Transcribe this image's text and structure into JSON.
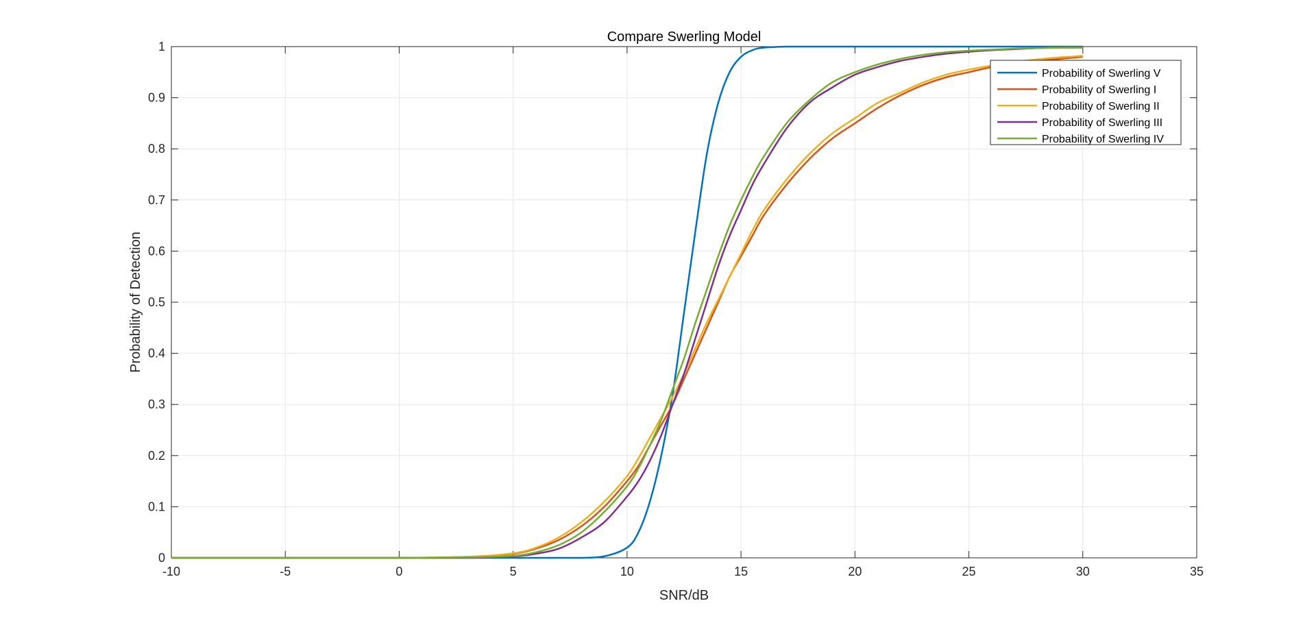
{
  "chart_data": {
    "type": "line",
    "title": "Compare Swerling Model",
    "xlabel": "SNR/dB",
    "ylabel": "Probability of Detection",
    "xlim": [
      -10,
      35
    ],
    "ylim": [
      0,
      1
    ],
    "x_ticks": [
      "-10",
      "-5",
      "0",
      "5",
      "10",
      "15",
      "20",
      "25",
      "30",
      "35"
    ],
    "y_ticks": [
      "0",
      "0.1",
      "0.2",
      "0.3",
      "0.4",
      "0.5",
      "0.6",
      "0.7",
      "0.8",
      "0.9",
      "1"
    ],
    "grid": true,
    "legend_position": "top-right",
    "x": [
      -10,
      -5,
      0,
      3,
      5,
      6,
      7,
      8,
      9,
      10,
      10.5,
      11,
      11.5,
      12,
      12.5,
      13,
      13.5,
      14,
      14.5,
      15,
      15.5,
      16,
      17,
      18,
      19,
      20,
      21,
      22,
      23,
      24,
      25,
      26,
      27,
      28,
      29,
      30
    ],
    "series": [
      {
        "name": "Probability of Swerling V",
        "color": "#0072BD",
        "values": [
          0,
          0,
          0,
          0,
          0,
          0,
          0,
          0,
          0.003,
          0.02,
          0.05,
          0.11,
          0.2,
          0.32,
          0.48,
          0.64,
          0.79,
          0.89,
          0.95,
          0.98,
          0.993,
          0.998,
          1,
          1,
          1,
          1,
          1,
          1,
          1,
          1,
          1,
          1,
          1,
          1,
          1,
          1
        ]
      },
      {
        "name": "Probability of Swerling I",
        "color": "#D95319",
        "values": [
          0,
          0,
          0,
          0.002,
          0.008,
          0.018,
          0.035,
          0.062,
          0.1,
          0.15,
          0.18,
          0.22,
          0.26,
          0.3,
          0.35,
          0.4,
          0.45,
          0.5,
          0.55,
          0.59,
          0.63,
          0.67,
          0.73,
          0.78,
          0.82,
          0.85,
          0.88,
          0.905,
          0.925,
          0.94,
          0.95,
          0.96,
          0.967,
          0.972,
          0.976,
          0.98
        ]
      },
      {
        "name": "Probability of Swerling II",
        "color": "#EDB120",
        "values": [
          0,
          0,
          0,
          0.002,
          0.009,
          0.02,
          0.04,
          0.07,
          0.11,
          0.16,
          0.195,
          0.235,
          0.275,
          0.315,
          0.36,
          0.41,
          0.46,
          0.505,
          0.55,
          0.595,
          0.64,
          0.68,
          0.74,
          0.79,
          0.83,
          0.86,
          0.89,
          0.91,
          0.93,
          0.945,
          0.955,
          0.963,
          0.97,
          0.975,
          0.979,
          0.982
        ]
      },
      {
        "name": "Probability of Swerling III",
        "color": "#7E2F8E",
        "values": [
          0,
          0,
          0,
          0,
          0.003,
          0.008,
          0.018,
          0.04,
          0.07,
          0.12,
          0.15,
          0.19,
          0.24,
          0.3,
          0.36,
          0.43,
          0.5,
          0.57,
          0.63,
          0.68,
          0.73,
          0.77,
          0.84,
          0.89,
          0.92,
          0.945,
          0.96,
          0.972,
          0.98,
          0.986,
          0.99,
          0.993,
          0.995,
          0.997,
          0.998,
          0.998
        ]
      },
      {
        "name": "Probability of Swerling IV",
        "color": "#77AC30",
        "values": [
          0,
          0,
          0,
          0.001,
          0.004,
          0.011,
          0.025,
          0.05,
          0.09,
          0.14,
          0.175,
          0.22,
          0.27,
          0.33,
          0.39,
          0.46,
          0.525,
          0.59,
          0.65,
          0.7,
          0.745,
          0.785,
          0.85,
          0.895,
          0.93,
          0.95,
          0.965,
          0.976,
          0.984,
          0.989,
          0.992,
          0.994,
          0.996,
          0.997,
          0.998,
          0.998
        ]
      }
    ]
  }
}
